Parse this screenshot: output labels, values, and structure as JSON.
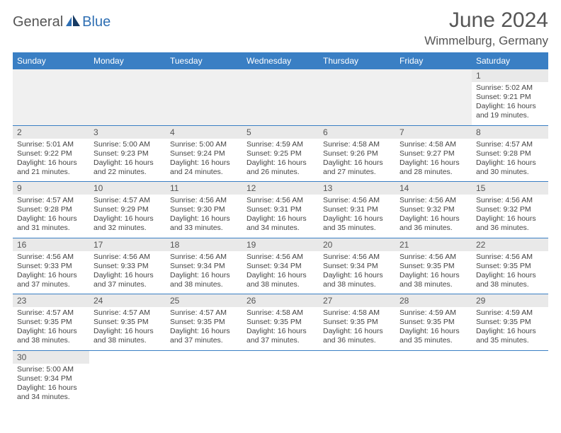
{
  "logo": {
    "part1": "General",
    "part2": "Blue"
  },
  "title": "June 2024",
  "location": "Wimmelburg, Germany",
  "colors": {
    "header_bg": "#3a7fc4",
    "header_text": "#ffffff",
    "daynum_bg": "#e9e9e9",
    "rule": "#3a7fc4",
    "logo_gray": "#555555",
    "logo_blue": "#2f6fb3"
  },
  "daysOfWeek": [
    "Sunday",
    "Monday",
    "Tuesday",
    "Wednesday",
    "Thursday",
    "Friday",
    "Saturday"
  ],
  "weeks": [
    [
      null,
      null,
      null,
      null,
      null,
      null,
      {
        "n": "1",
        "sr": "5:02 AM",
        "ss": "9:21 PM",
        "dl": "16 hours and 19 minutes."
      }
    ],
    [
      {
        "n": "2",
        "sr": "5:01 AM",
        "ss": "9:22 PM",
        "dl": "16 hours and 21 minutes."
      },
      {
        "n": "3",
        "sr": "5:00 AM",
        "ss": "9:23 PM",
        "dl": "16 hours and 22 minutes."
      },
      {
        "n": "4",
        "sr": "5:00 AM",
        "ss": "9:24 PM",
        "dl": "16 hours and 24 minutes."
      },
      {
        "n": "5",
        "sr": "4:59 AM",
        "ss": "9:25 PM",
        "dl": "16 hours and 26 minutes."
      },
      {
        "n": "6",
        "sr": "4:58 AM",
        "ss": "9:26 PM",
        "dl": "16 hours and 27 minutes."
      },
      {
        "n": "7",
        "sr": "4:58 AM",
        "ss": "9:27 PM",
        "dl": "16 hours and 28 minutes."
      },
      {
        "n": "8",
        "sr": "4:57 AM",
        "ss": "9:28 PM",
        "dl": "16 hours and 30 minutes."
      }
    ],
    [
      {
        "n": "9",
        "sr": "4:57 AM",
        "ss": "9:28 PM",
        "dl": "16 hours and 31 minutes."
      },
      {
        "n": "10",
        "sr": "4:57 AM",
        "ss": "9:29 PM",
        "dl": "16 hours and 32 minutes."
      },
      {
        "n": "11",
        "sr": "4:56 AM",
        "ss": "9:30 PM",
        "dl": "16 hours and 33 minutes."
      },
      {
        "n": "12",
        "sr": "4:56 AM",
        "ss": "9:31 PM",
        "dl": "16 hours and 34 minutes."
      },
      {
        "n": "13",
        "sr": "4:56 AM",
        "ss": "9:31 PM",
        "dl": "16 hours and 35 minutes."
      },
      {
        "n": "14",
        "sr": "4:56 AM",
        "ss": "9:32 PM",
        "dl": "16 hours and 36 minutes."
      },
      {
        "n": "15",
        "sr": "4:56 AM",
        "ss": "9:32 PM",
        "dl": "16 hours and 36 minutes."
      }
    ],
    [
      {
        "n": "16",
        "sr": "4:56 AM",
        "ss": "9:33 PM",
        "dl": "16 hours and 37 minutes."
      },
      {
        "n": "17",
        "sr": "4:56 AM",
        "ss": "9:33 PM",
        "dl": "16 hours and 37 minutes."
      },
      {
        "n": "18",
        "sr": "4:56 AM",
        "ss": "9:34 PM",
        "dl": "16 hours and 38 minutes."
      },
      {
        "n": "19",
        "sr": "4:56 AM",
        "ss": "9:34 PM",
        "dl": "16 hours and 38 minutes."
      },
      {
        "n": "20",
        "sr": "4:56 AM",
        "ss": "9:34 PM",
        "dl": "16 hours and 38 minutes."
      },
      {
        "n": "21",
        "sr": "4:56 AM",
        "ss": "9:35 PM",
        "dl": "16 hours and 38 minutes."
      },
      {
        "n": "22",
        "sr": "4:56 AM",
        "ss": "9:35 PM",
        "dl": "16 hours and 38 minutes."
      }
    ],
    [
      {
        "n": "23",
        "sr": "4:57 AM",
        "ss": "9:35 PM",
        "dl": "16 hours and 38 minutes."
      },
      {
        "n": "24",
        "sr": "4:57 AM",
        "ss": "9:35 PM",
        "dl": "16 hours and 38 minutes."
      },
      {
        "n": "25",
        "sr": "4:57 AM",
        "ss": "9:35 PM",
        "dl": "16 hours and 37 minutes."
      },
      {
        "n": "26",
        "sr": "4:58 AM",
        "ss": "9:35 PM",
        "dl": "16 hours and 37 minutes."
      },
      {
        "n": "27",
        "sr": "4:58 AM",
        "ss": "9:35 PM",
        "dl": "16 hours and 36 minutes."
      },
      {
        "n": "28",
        "sr": "4:59 AM",
        "ss": "9:35 PM",
        "dl": "16 hours and 35 minutes."
      },
      {
        "n": "29",
        "sr": "4:59 AM",
        "ss": "9:35 PM",
        "dl": "16 hours and 35 minutes."
      }
    ],
    [
      {
        "n": "30",
        "sr": "5:00 AM",
        "ss": "9:34 PM",
        "dl": "16 hours and 34 minutes."
      },
      null,
      null,
      null,
      null,
      null,
      null
    ]
  ],
  "labels": {
    "sunrise": "Sunrise: ",
    "sunset": "Sunset: ",
    "daylight": "Daylight: "
  }
}
